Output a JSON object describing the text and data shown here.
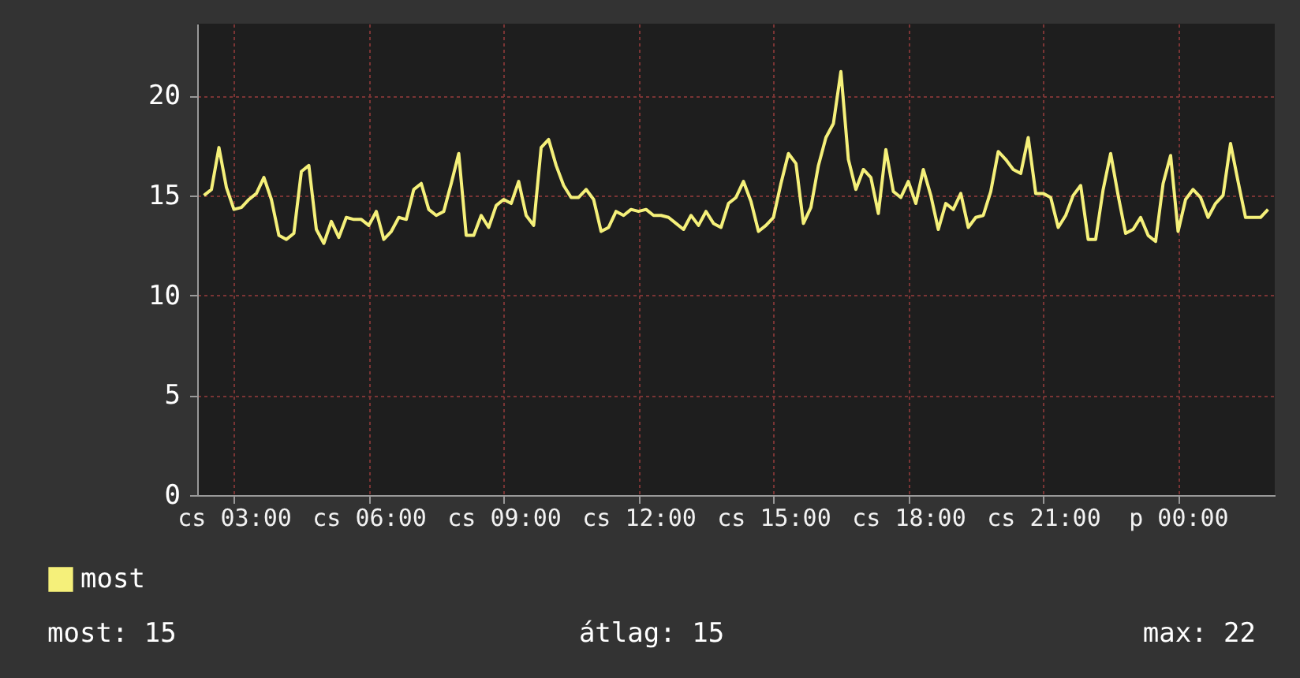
{
  "chart_data": {
    "type": "line",
    "categories": [
      null,
      null,
      null,
      null,
      "cs 03:00",
      null,
      null,
      null,
      null,
      null,
      null,
      null,
      null,
      null,
      null,
      null,
      null,
      null,
      null,
      null,
      null,
      null,
      "cs 06:00",
      null,
      null,
      null,
      null,
      null,
      null,
      null,
      null,
      null,
      null,
      null,
      null,
      null,
      null,
      null,
      null,
      null,
      "cs 09:00",
      null,
      null,
      null,
      null,
      null,
      null,
      null,
      null,
      null,
      null,
      null,
      null,
      null,
      null,
      null,
      null,
      null,
      "cs 12:00",
      null,
      null,
      null,
      null,
      null,
      null,
      null,
      null,
      null,
      null,
      null,
      null,
      null,
      null,
      null,
      null,
      null,
      "cs 15:00",
      null,
      null,
      null,
      null,
      null,
      null,
      null,
      null,
      null,
      null,
      null,
      null,
      null,
      null,
      null,
      null,
      null,
      "cs 18:00",
      null,
      null,
      null,
      null,
      null,
      null,
      null,
      null,
      null,
      null,
      null,
      null,
      null,
      null,
      null,
      null,
      null,
      "cs 21:00",
      null,
      null,
      null,
      null,
      null,
      null,
      null,
      null,
      null,
      null,
      null,
      null,
      null,
      null,
      null,
      null,
      null,
      "p 00:00",
      null,
      null,
      null,
      null,
      null,
      null,
      null,
      null,
      null,
      null,
      null,
      null
    ],
    "series": [
      {
        "name": "most",
        "color": "#f5f07a",
        "values": [
          15.0,
          15.3,
          17.4,
          15.4,
          14.3,
          14.4,
          14.8,
          15.1,
          15.9,
          14.8,
          13.0,
          12.8,
          13.1,
          16.2,
          16.5,
          13.3,
          12.6,
          13.7,
          12.9,
          13.9,
          13.8,
          13.8,
          13.5,
          14.2,
          12.8,
          13.2,
          13.9,
          13.8,
          15.3,
          15.6,
          14.3,
          14.0,
          14.2,
          15.6,
          17.1,
          13.0,
          13.0,
          14.0,
          13.4,
          14.5,
          14.8,
          14.6,
          15.7,
          14.0,
          13.5,
          17.4,
          17.8,
          16.5,
          15.5,
          14.9,
          14.9,
          15.3,
          14.8,
          13.2,
          13.4,
          14.2,
          14.0,
          14.3,
          14.2,
          14.3,
          14.0,
          14.0,
          13.9,
          13.6,
          13.3,
          14.0,
          13.5,
          14.2,
          13.6,
          13.4,
          14.6,
          14.9,
          15.7,
          14.7,
          13.2,
          13.5,
          13.9,
          15.6,
          17.1,
          16.6,
          13.6,
          14.4,
          16.5,
          17.9,
          18.6,
          21.2,
          16.8,
          15.3,
          16.3,
          15.9,
          14.1,
          17.3,
          15.2,
          14.9,
          15.7,
          14.6,
          16.3,
          15.0,
          13.3,
          14.6,
          14.3,
          15.1,
          13.4,
          13.9,
          14.0,
          15.2,
          17.2,
          16.8,
          16.3,
          16.1,
          17.9,
          15.1,
          15.1,
          14.9,
          13.4,
          14.0,
          15.0,
          15.5,
          12.8,
          12.8,
          15.3,
          17.1,
          15.0,
          13.1,
          13.3,
          13.9,
          13.0,
          12.7,
          15.6,
          17.0,
          13.2,
          14.8,
          15.3,
          14.9,
          13.9,
          14.6,
          15.0,
          17.6,
          15.7,
          13.9,
          13.9,
          13.9,
          14.3
        ]
      }
    ],
    "ylim": [
      0,
      23.6
    ],
    "yticks": [
      0,
      5,
      10,
      15,
      20
    ],
    "grid": true,
    "legend": "bottom left",
    "annotations": [
      "most: 15",
      "átlag: 15",
      "max: 22"
    ]
  }
}
